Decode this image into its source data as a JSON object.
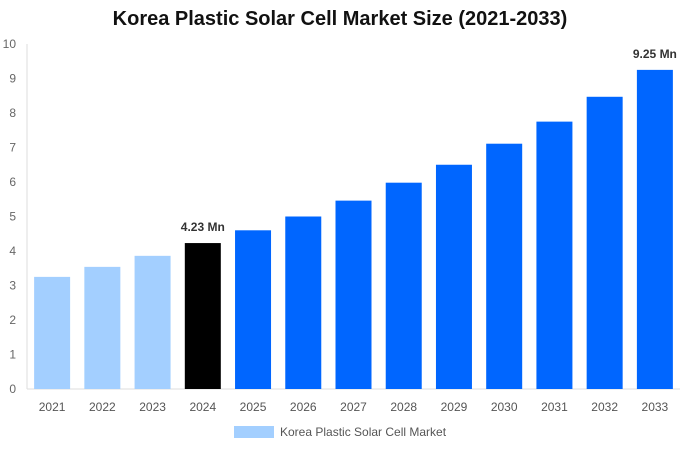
{
  "chart_data": {
    "type": "bar",
    "title": "Korea Plastic Solar Cell Market Size (2021-2033)",
    "categories": [
      "2021",
      "2022",
      "2023",
      "2024",
      "2025",
      "2026",
      "2027",
      "2028",
      "2029",
      "2030",
      "2031",
      "2032",
      "2033"
    ],
    "series": [
      {
        "name": "Korea Plastic Solar Cell Market",
        "values": [
          3.25,
          3.54,
          3.86,
          4.23,
          4.6,
          5.0,
          5.46,
          5.98,
          6.5,
          7.11,
          7.75,
          8.47,
          9.25
        ]
      }
    ],
    "ylim": [
      0,
      10
    ],
    "yticks": [
      0,
      1,
      2,
      3,
      4,
      5,
      6,
      7,
      8,
      9,
      10
    ],
    "grid": false,
    "legend": "bottom",
    "data_labels": {
      "2024": "4.23 Mn",
      "2033": "9.25 Mn"
    },
    "colors": {
      "historical": "#a3cfff",
      "base_year": "#000000",
      "forecast": "#0066ff"
    }
  }
}
